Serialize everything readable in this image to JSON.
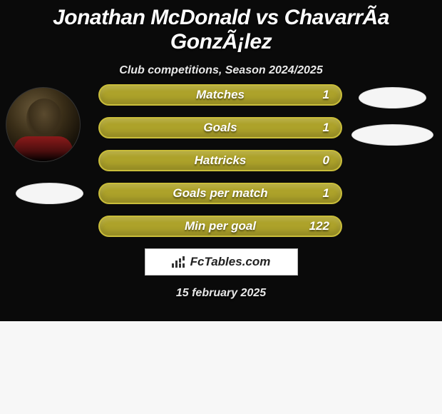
{
  "title": "Jonathan McDonald vs ChavarrÃ­a GonzÃ¡lez",
  "subtitle": "Club competitions, Season 2024/2025",
  "stats": [
    {
      "label": "Matches",
      "value": "1"
    },
    {
      "label": "Goals",
      "value": "1"
    },
    {
      "label": "Hattricks",
      "value": "0"
    },
    {
      "label": "Goals per match",
      "value": "1"
    },
    {
      "label": "Min per goal",
      "value": "122"
    }
  ],
  "brand": "FcTables.com",
  "date": "15 february 2025",
  "colors": {
    "card_bg": "#0a0a0a",
    "bar_fill": "#ada22a",
    "bar_border": "#c9bd3a",
    "text": "#ffffff",
    "page_bg": "#f7f7f7"
  }
}
